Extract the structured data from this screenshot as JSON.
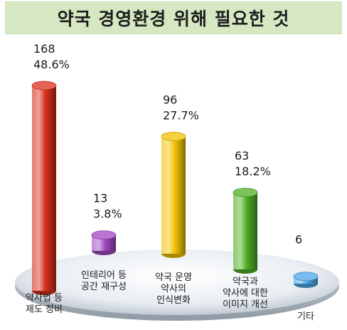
{
  "chart_data": {
    "type": "bar",
    "title": "약국 경영환경 위해 필요한 것",
    "categories": [
      [
        "약사법 등",
        "제도 정비"
      ],
      [
        "인테리어 등",
        "공간 재구성"
      ],
      [
        "약국 운영",
        "약사의",
        "인식변화"
      ],
      [
        "약국과",
        "약사에 대한",
        "이미지 개선"
      ],
      [
        "기타"
      ]
    ],
    "values": [
      168,
      13,
      96,
      63,
      6
    ],
    "percent_labels": [
      "48.6%",
      "3.8%",
      "27.7%",
      "18.2%",
      ""
    ],
    "colors": [
      "#d9301c",
      "#a247c2",
      "#f2c200",
      "#4fae24",
      "#4da6e8"
    ],
    "ylim": [
      0,
      168
    ],
    "grid": false,
    "legend": "none"
  }
}
